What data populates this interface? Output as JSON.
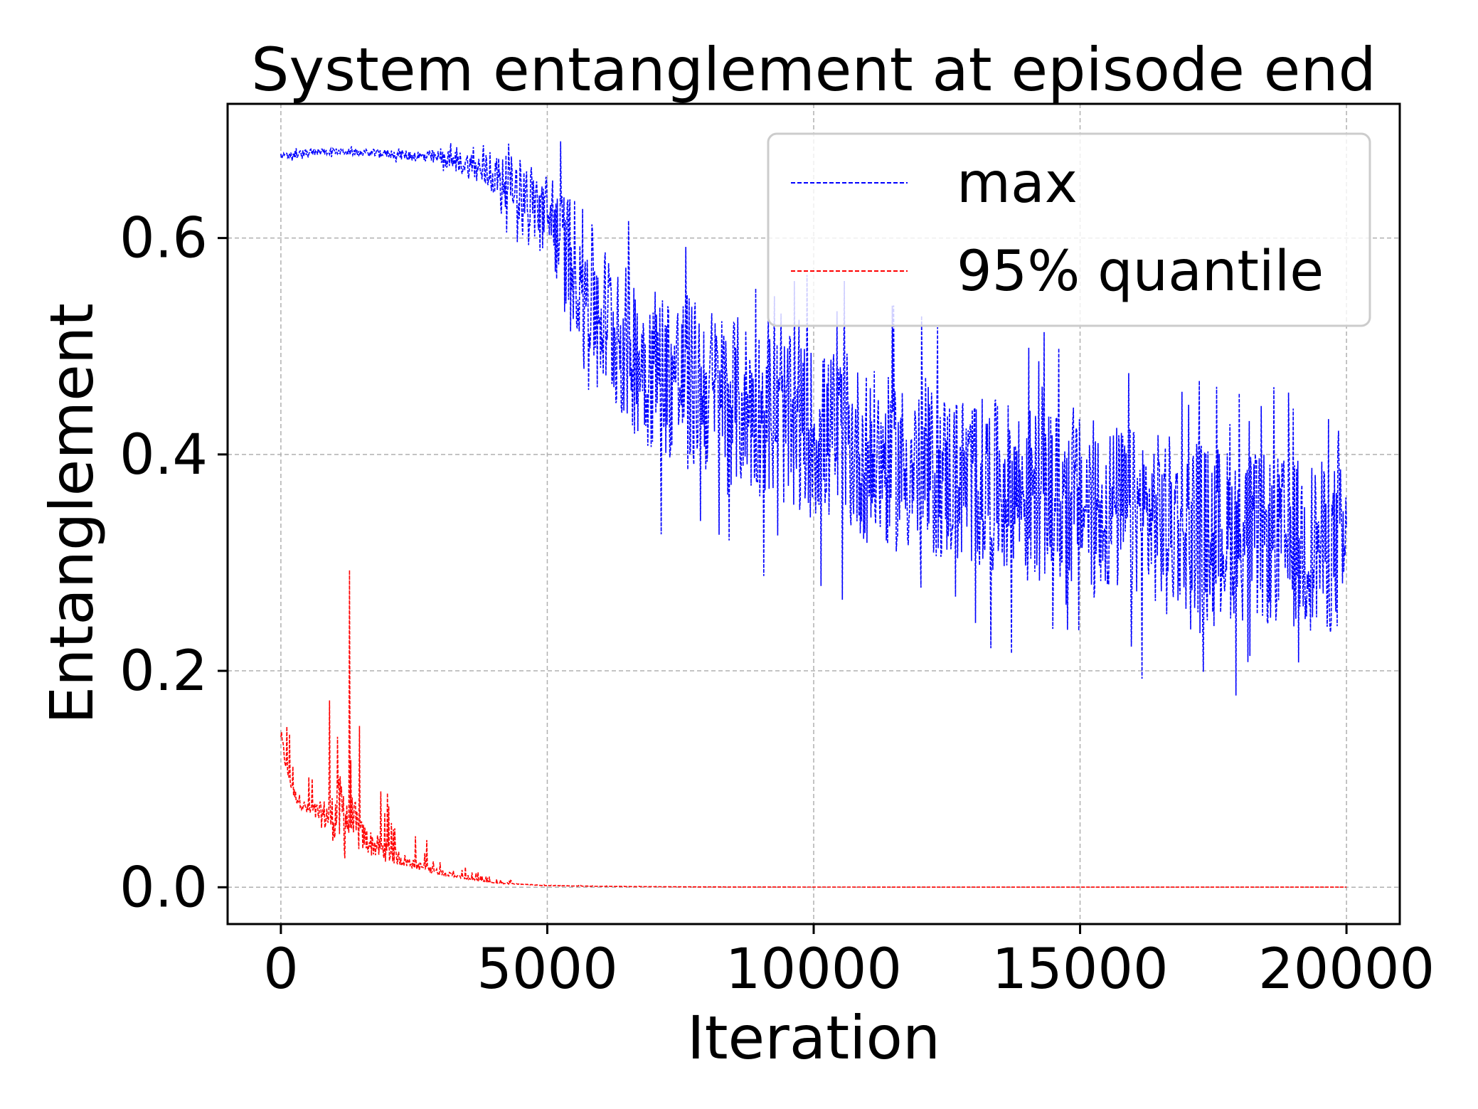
{
  "chart_data": {
    "type": "line",
    "title": "System entanglement at episode end",
    "xlabel": "Iteration",
    "ylabel": "Entanglement",
    "xlim": [
      -1000,
      21000
    ],
    "ylim": [
      -0.034,
      0.724
    ],
    "xticks": [
      0,
      5000,
      10000,
      15000,
      20000
    ],
    "xtick_labels": [
      "0",
      "5000",
      "10000",
      "15000",
      "20000"
    ],
    "yticks": [
      0.0,
      0.2,
      0.4,
      0.6
    ],
    "ytick_labels": [
      "0.0",
      "0.2",
      "0.4",
      "0.6"
    ],
    "grid": true,
    "legend_position": "upper right",
    "series": [
      {
        "name": "max",
        "color": "#0000ff",
        "line_style": "dashed",
        "x": [
          0,
          250,
          500,
          750,
          1000,
          1500,
          2000,
          2500,
          3000,
          3500,
          4000,
          4500,
          5000,
          5500,
          6000,
          6500,
          7000,
          7500,
          8000,
          8500,
          9000,
          9500,
          10000,
          10500,
          11000,
          11500,
          12000,
          12500,
          13000,
          13500,
          14000,
          14500,
          15000,
          15500,
          16000,
          16500,
          17000,
          17500,
          18000,
          18500,
          19000,
          19500,
          20000
        ],
        "y": [
          0.675,
          0.677,
          0.678,
          0.68,
          0.68,
          0.679,
          0.678,
          0.676,
          0.674,
          0.668,
          0.658,
          0.645,
          0.62,
          0.58,
          0.53,
          0.5,
          0.48,
          0.47,
          0.46,
          0.45,
          0.44,
          0.43,
          0.42,
          0.41,
          0.4,
          0.39,
          0.385,
          0.38,
          0.375,
          0.37,
          0.365,
          0.36,
          0.355,
          0.35,
          0.345,
          0.34,
          0.335,
          0.33,
          0.325,
          0.32,
          0.318,
          0.315,
          0.31
        ],
        "noise": [
          0.003,
          0.004,
          0.004,
          0.003,
          0.003,
          0.003,
          0.004,
          0.005,
          0.007,
          0.012,
          0.02,
          0.03,
          0.04,
          0.06,
          0.07,
          0.075,
          0.08,
          0.08,
          0.08,
          0.08,
          0.08,
          0.08,
          0.08,
          0.08,
          0.08,
          0.08,
          0.08,
          0.08,
          0.08,
          0.08,
          0.08,
          0.08,
          0.08,
          0.08,
          0.08,
          0.08,
          0.08,
          0.08,
          0.08,
          0.08,
          0.08,
          0.08,
          0.08
        ]
      },
      {
        "name": "95% quantile",
        "color": "#ff0000",
        "line_style": "dashed",
        "x": [
          0,
          100,
          250,
          500,
          750,
          1000,
          1100,
          1200,
          1300,
          1400,
          1500,
          1700,
          2000,
          2500,
          3000,
          3500,
          4000,
          5000,
          6000,
          7000,
          8000,
          10000,
          12000,
          14000,
          16000,
          18000,
          20000
        ],
        "y": [
          0.14,
          0.11,
          0.085,
          0.07,
          0.065,
          0.06,
          0.06,
          0.06,
          0.055,
          0.05,
          0.045,
          0.038,
          0.03,
          0.02,
          0.013,
          0.008,
          0.004,
          0.0015,
          0.0008,
          0.0005,
          0.0003,
          0.0002,
          0.0001,
          0.0001,
          0.0001,
          0.0001,
          0.0001
        ],
        "noise": [
          0.02,
          0.02,
          0.02,
          0.02,
          0.04,
          0.08,
          0.12,
          0.15,
          0.1,
          0.08,
          0.05,
          0.04,
          0.03,
          0.015,
          0.008,
          0.004,
          0.002,
          0.0005,
          0.0002,
          0.0001,
          0.0,
          0.0,
          0.0,
          0.0,
          0.0,
          0.0,
          0.0
        ]
      }
    ]
  }
}
